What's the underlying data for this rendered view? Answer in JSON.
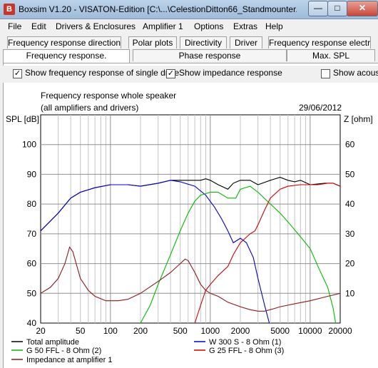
{
  "window": {
    "title": "Boxsim V1.20 - VISATON-Edition [C:\\...\\CelestionDitton66_Standmounter....",
    "minimize": "—",
    "maximize": "□",
    "close": "✕"
  },
  "menu": [
    "File",
    "Edit",
    "Drivers & Enclosures",
    "Amplifier 1",
    "Options",
    "Extras",
    "Help"
  ],
  "tabs_row1": [
    "Frequency response directions",
    "Polar plots",
    "Directivity",
    "Driver",
    "Frequency response electr..."
  ],
  "tabs_row2": [
    "Frequency response.",
    "Phase response",
    "Max. SPL"
  ],
  "options": {
    "single_drive_label": "Show frequency response of single drive",
    "impedance_label": "Show impedance response",
    "acoustic_label": "Show acous",
    "single_drive_checked": true,
    "impedance_checked": true,
    "acoustic_checked": false
  },
  "chart_header": {
    "title_line1": "Frequency response whole speaker",
    "title_line2": "(all amplifiers and drivers)",
    "date": "29/06/2012"
  },
  "chart_data": {
    "type": "line",
    "ylabel": "SPL [dB]",
    "y2label": "Z [ohm]",
    "xscale": "log",
    "xlim": [
      20,
      20000
    ],
    "ylim": [
      40,
      110
    ],
    "y2lim": [
      0,
      70
    ],
    "x_ticks": [
      "20",
      "50",
      "100",
      "200",
      "500",
      "1000",
      "2000",
      "5000",
      "10000",
      "20000"
    ],
    "y_ticks": [
      "40",
      "50",
      "60",
      "70",
      "80",
      "90",
      "100"
    ],
    "y2_ticks": [
      "10",
      "20",
      "30",
      "40",
      "50",
      "60"
    ],
    "grid": true,
    "legend_position": "bottom",
    "series": [
      {
        "name": "Total amplitude",
        "color": "#000000",
        "axis": "left",
        "points": [
          [
            20,
            71
          ],
          [
            30,
            77
          ],
          [
            40,
            82
          ],
          [
            50,
            84
          ],
          [
            70,
            85.5
          ],
          [
            100,
            86.5
          ],
          [
            150,
            86.5
          ],
          [
            200,
            86
          ],
          [
            300,
            87
          ],
          [
            400,
            88
          ],
          [
            500,
            88
          ],
          [
            600,
            88
          ],
          [
            700,
            88
          ],
          [
            800,
            88
          ],
          [
            900,
            88.5
          ],
          [
            1000,
            88
          ],
          [
            1200,
            86.5
          ],
          [
            1500,
            85
          ],
          [
            1700,
            87
          ],
          [
            2000,
            88
          ],
          [
            2500,
            88
          ],
          [
            3000,
            86.5
          ],
          [
            4000,
            88
          ],
          [
            5000,
            89
          ],
          [
            6000,
            88
          ],
          [
            7000,
            87.5
          ],
          [
            8000,
            88
          ],
          [
            10000,
            86.5
          ],
          [
            14000,
            87
          ],
          [
            17000,
            87
          ],
          [
            20000,
            86
          ]
        ]
      },
      {
        "name": "W 300 S - 8 Ohm (1)",
        "color": "#0000cc",
        "axis": "left",
        "points": [
          [
            20,
            71
          ],
          [
            30,
            77
          ],
          [
            40,
            82
          ],
          [
            50,
            84
          ],
          [
            70,
            85.5
          ],
          [
            100,
            86.5
          ],
          [
            150,
            86.5
          ],
          [
            200,
            86
          ],
          [
            300,
            87
          ],
          [
            400,
            88
          ],
          [
            500,
            87.5
          ],
          [
            700,
            86
          ],
          [
            900,
            83
          ],
          [
            1100,
            79
          ],
          [
            1300,
            75
          ],
          [
            1500,
            71
          ],
          [
            1700,
            67
          ],
          [
            2000,
            68.5
          ],
          [
            2300,
            67
          ],
          [
            2700,
            62
          ],
          [
            3000,
            55
          ],
          [
            3500,
            46
          ],
          [
            3900,
            40
          ]
        ]
      },
      {
        "name": "G 50 FFL - 8 Ohm (2)",
        "color": "#00bb00",
        "axis": "left",
        "points": [
          [
            200,
            40
          ],
          [
            250,
            46
          ],
          [
            300,
            53
          ],
          [
            400,
            63
          ],
          [
            500,
            71
          ],
          [
            600,
            77
          ],
          [
            700,
            81
          ],
          [
            800,
            83
          ],
          [
            1000,
            84
          ],
          [
            1200,
            84
          ],
          [
            1500,
            82
          ],
          [
            1800,
            82
          ],
          [
            2000,
            85
          ],
          [
            2500,
            86
          ],
          [
            3000,
            84
          ],
          [
            4000,
            80
          ],
          [
            5000,
            77
          ],
          [
            6000,
            74
          ],
          [
            8000,
            69
          ],
          [
            10000,
            65
          ],
          [
            12000,
            59
          ],
          [
            15000,
            52
          ],
          [
            17000,
            45
          ],
          [
            18000,
            40
          ]
        ]
      },
      {
        "name": "G 25 FFL - 8 Ohm (3)",
        "color": "#cc0000",
        "axis": "left",
        "points": [
          [
            700,
            40
          ],
          [
            800,
            46
          ],
          [
            900,
            51
          ],
          [
            1000,
            53
          ],
          [
            1200,
            56
          ],
          [
            1500,
            59
          ],
          [
            1700,
            63
          ],
          [
            2000,
            67
          ],
          [
            2500,
            70
          ],
          [
            2800,
            71
          ],
          [
            3000,
            73
          ],
          [
            3500,
            78
          ],
          [
            4000,
            82
          ],
          [
            5000,
            85
          ],
          [
            6000,
            86
          ],
          [
            8000,
            86.5
          ],
          [
            10000,
            86.5
          ],
          [
            12000,
            86.5
          ],
          [
            15000,
            87
          ],
          [
            17000,
            87
          ],
          [
            20000,
            86
          ]
        ]
      },
      {
        "name": "Impedance at amplifier 1",
        "color": "#8b1a1a",
        "axis": "right",
        "points": [
          [
            20,
            10
          ],
          [
            25,
            12
          ],
          [
            30,
            15
          ],
          [
            35,
            20
          ],
          [
            39,
            25.5
          ],
          [
            42,
            24
          ],
          [
            50,
            15
          ],
          [
            60,
            11
          ],
          [
            70,
            9
          ],
          [
            90,
            7.5
          ],
          [
            120,
            7.5
          ],
          [
            150,
            8
          ],
          [
            200,
            10
          ],
          [
            300,
            14
          ],
          [
            400,
            17
          ],
          [
            500,
            20
          ],
          [
            560,
            21.5
          ],
          [
            600,
            21
          ],
          [
            700,
            17
          ],
          [
            800,
            13
          ],
          [
            900,
            11
          ],
          [
            1000,
            10
          ],
          [
            1200,
            9
          ],
          [
            1500,
            7
          ],
          [
            2000,
            5.5
          ],
          [
            2500,
            4.5
          ],
          [
            3000,
            4
          ],
          [
            3500,
            4
          ],
          [
            4000,
            4.5
          ],
          [
            4500,
            5
          ],
          [
            5000,
            5.5
          ],
          [
            7000,
            6.5
          ],
          [
            10000,
            7.5
          ],
          [
            15000,
            9
          ],
          [
            20000,
            10
          ]
        ]
      }
    ]
  }
}
